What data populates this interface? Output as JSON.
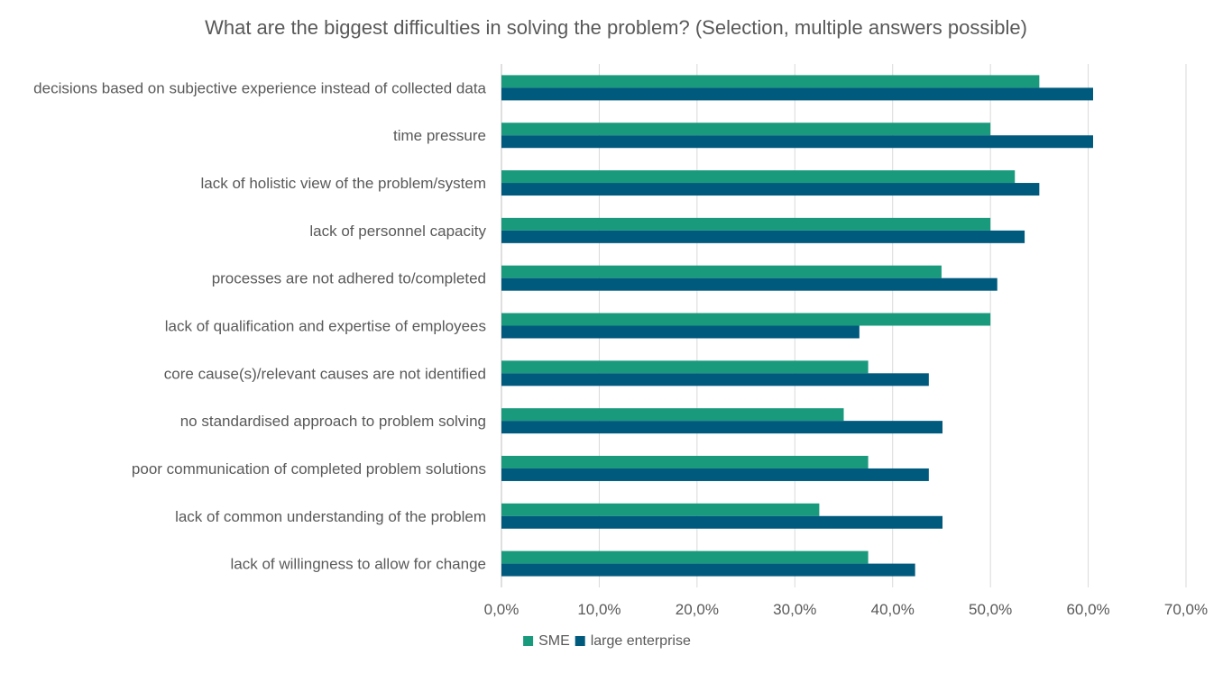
{
  "chart_data": {
    "type": "bar",
    "orientation": "horizontal",
    "title": "What are the biggest difficulties in solving the problem? (Selection, multiple answers possible)",
    "categories": [
      "decisions based on subjective experience instead of collected data",
      "time pressure",
      "lack of holistic view of the problem/system",
      "lack of personnel capacity",
      "processes are not adhered to/completed",
      "lack of qualification and expertise of employees",
      "core cause(s)/relevant causes are not identified",
      "no standardised approach to problem solving",
      "poor communication of completed problem solutions",
      "lack of common understanding of the problem",
      "lack of willingness to allow for change"
    ],
    "series": [
      {
        "name": "SME",
        "color": "#1a9a7c",
        "values": [
          55.0,
          50.0,
          52.5,
          50.0,
          45.0,
          50.0,
          37.5,
          35.0,
          37.5,
          32.5,
          37.5
        ]
      },
      {
        "name": "large enterprise",
        "color": "#005a7d",
        "values": [
          60.5,
          60.5,
          55.0,
          53.5,
          50.7,
          36.6,
          43.7,
          45.1,
          43.7,
          45.1,
          42.3
        ]
      }
    ],
    "xlim": [
      0,
      70
    ],
    "xticks": [
      0,
      10,
      20,
      30,
      40,
      50,
      60,
      70
    ],
    "xtick_labels": [
      "0,0%",
      "10,0%",
      "20,0%",
      "30,0%",
      "40,0%",
      "50,0%",
      "60,0%",
      "70,0%"
    ],
    "grid": true,
    "legend_position": "bottom"
  }
}
